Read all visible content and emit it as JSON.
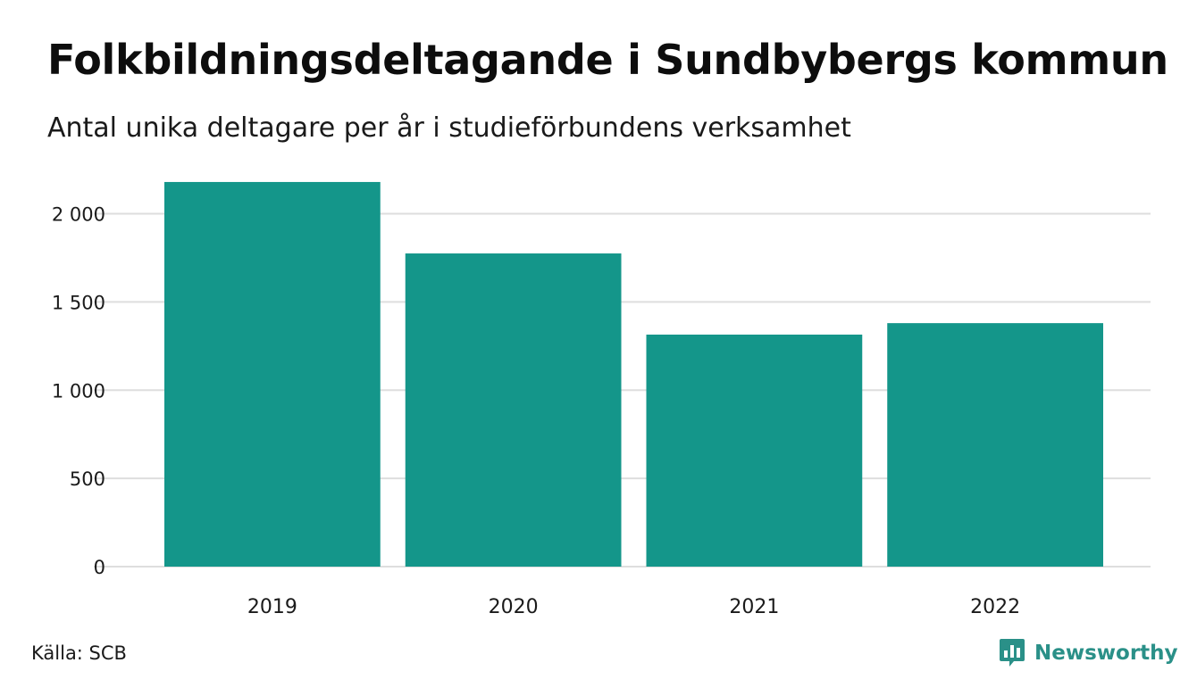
{
  "header": {
    "title": "Folkbildningsdeltagande i Sundbybergs kommun",
    "subtitle": "Antal unika deltagare per år i studieförbundens verksamhet"
  },
  "footer": {
    "source": "Källa: SCB",
    "brand": "Newsworthy",
    "brand_icon": "bar-chart-speech-bubble-icon"
  },
  "colors": {
    "bar": "#14968a",
    "grid": "#dedede",
    "text": "#1a1a1a",
    "brand": "#2a9088"
  },
  "chart_data": {
    "type": "bar",
    "categories": [
      "2019",
      "2020",
      "2021",
      "2022"
    ],
    "values": [
      2180,
      1775,
      1315,
      1380
    ],
    "ylim": [
      0,
      2200
    ],
    "yticks": [
      0,
      500,
      1000,
      1500,
      2000
    ],
    "ytick_labels": [
      "0",
      "500",
      "1 000",
      "1 500",
      "2 000"
    ],
    "grid": true,
    "legend": "none",
    "xlabel": "",
    "ylabel": ""
  }
}
